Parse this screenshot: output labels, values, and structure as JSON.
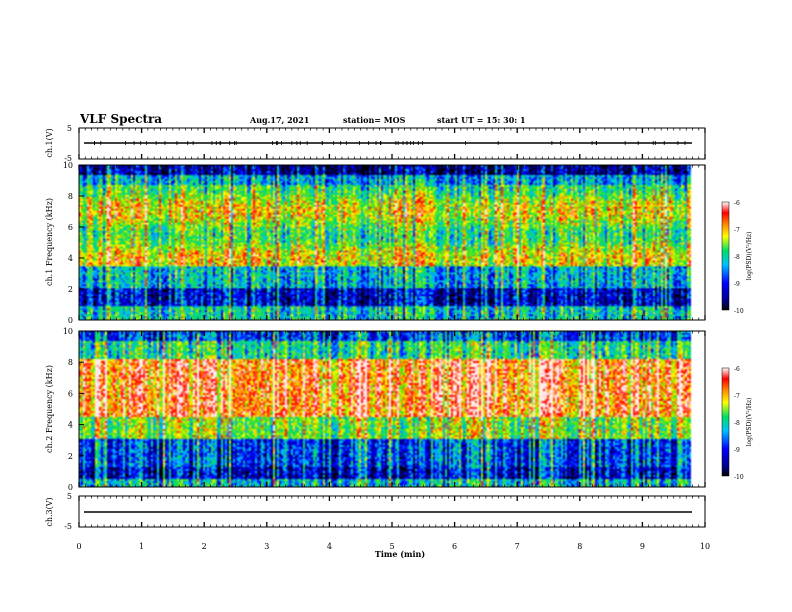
{
  "header": {
    "title": "VLF Spectra",
    "date": "Aug.17, 2021",
    "station": "station= MOS",
    "start_ut": "start  UT =   15: 30: 1"
  },
  "chart_data": [
    {
      "type": "line",
      "panel": "ch.1 waveform",
      "ylabel": "ch.1(V)",
      "ylim": [
        -5,
        5
      ],
      "yticks": [
        "5",
        "-5"
      ],
      "xlim": [
        0,
        10
      ],
      "series": [
        {
          "x": [
            0,
            9.8
          ],
          "values": [
            0,
            0
          ]
        }
      ]
    },
    {
      "type": "heatmap",
      "panel": "ch.1 spectrogram",
      "ylabel": "ch.1  Frequency (kHz)",
      "ylim": [
        0,
        10
      ],
      "yticks": [
        "0",
        "2",
        "4",
        "6",
        "8",
        "10"
      ],
      "xlim": [
        0,
        10
      ],
      "colorbar": {
        "label": "log(PSD)(V²/Hz)",
        "range": [
          -10,
          -6
        ],
        "ticks": [
          "-6",
          "-7",
          "-8",
          "-9",
          "-10"
        ]
      }
    },
    {
      "type": "heatmap",
      "panel": "ch.2 spectrogram",
      "ylabel": "ch.2  Frequency (kHz)",
      "ylim": [
        0,
        10
      ],
      "yticks": [
        "0",
        "2",
        "4",
        "6",
        "8",
        "10"
      ],
      "xlim": [
        0,
        10
      ],
      "colorbar": {
        "label": "log(PSD)(V²/Hz)",
        "range": [
          -10,
          -6
        ],
        "ticks": [
          "-6",
          "-7",
          "-8",
          "-9",
          "-10"
        ]
      }
    },
    {
      "type": "line",
      "panel": "ch.3 waveform",
      "ylabel": "ch.3(V)",
      "ylim": [
        -5,
        5
      ],
      "yticks": [
        "5",
        "-5"
      ],
      "xlim": [
        0,
        10
      ],
      "xlabel": "Time  (min)",
      "xticks": [
        "0",
        "1",
        "2",
        "3",
        "4",
        "5",
        "6",
        "7",
        "8",
        "9",
        "10"
      ],
      "series": [
        {
          "x": [
            0,
            9.8
          ],
          "values": [
            0,
            0
          ]
        }
      ]
    }
  ],
  "colors": {
    "low": "#000080",
    "mid_low": "#0000ff",
    "mid": "#00e060",
    "mid_high": "#ffff00",
    "high": "#ff0000",
    "top": "#ffffff"
  }
}
